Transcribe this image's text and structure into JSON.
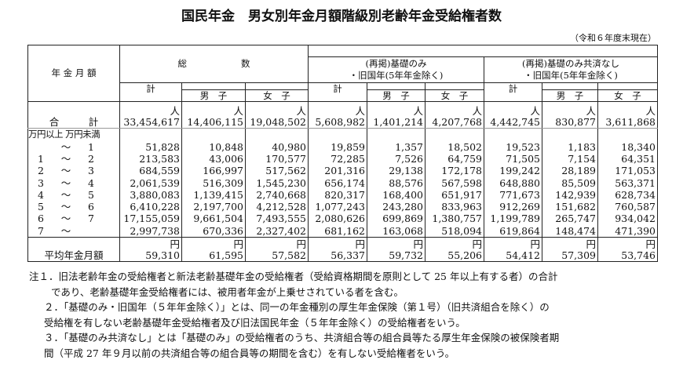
{
  "title": "国民年金　男女別年金月額階級別老齢年金受給権者数",
  "as_of": "（令和６年度末現在）",
  "headers": {
    "row_label": "年 金 月 額",
    "total": "総　　　　　　数",
    "basic": "(再掲)基礎のみ\n・旧国年(5年年金除く)",
    "basic_nokyosai": "(再掲)基礎のみ共済なし\n・旧国年(5年年金除く)",
    "kei": "計",
    "male": "男　子",
    "female": "女　子"
  },
  "unit_people": "人",
  "unit_yen": "円",
  "total_row": {
    "label": "合　　　計",
    "values": [
      "33,454,617",
      "14,406,115",
      "19,048,502",
      "5,608,982",
      "1,401,214",
      "4,207,768",
      "4,442,745",
      "830,877",
      "3,611,868"
    ]
  },
  "range_header": "万円以上 万円未満",
  "rows": [
    {
      "from": "",
      "to": "1",
      "values": [
        "51,828",
        "10,848",
        "40,980",
        "19,859",
        "1,357",
        "18,502",
        "19,523",
        "1,183",
        "18,340"
      ]
    },
    {
      "from": "1",
      "to": "2",
      "values": [
        "213,583",
        "43,006",
        "170,577",
        "72,285",
        "7,526",
        "64,759",
        "71,505",
        "7,154",
        "64,351"
      ]
    },
    {
      "from": "2",
      "to": "3",
      "values": [
        "684,559",
        "166,997",
        "517,562",
        "201,316",
        "29,138",
        "172,178",
        "199,242",
        "28,189",
        "171,053"
      ]
    },
    {
      "from": "3",
      "to": "4",
      "values": [
        "2,061,539",
        "516,309",
        "1,545,230",
        "656,174",
        "88,576",
        "567,598",
        "648,880",
        "85,509",
        "563,371"
      ]
    },
    {
      "from": "4",
      "to": "5",
      "values": [
        "3,880,083",
        "1,139,415",
        "2,740,668",
        "820,317",
        "168,400",
        "651,917",
        "771,673",
        "142,939",
        "628,734"
      ]
    },
    {
      "from": "5",
      "to": "6",
      "values": [
        "6,410,228",
        "2,197,700",
        "4,212,528",
        "1,077,243",
        "243,280",
        "833,963",
        "912,269",
        "151,682",
        "760,587"
      ]
    },
    {
      "from": "6",
      "to": "7",
      "values": [
        "17,155,059",
        "9,661,504",
        "7,493,555",
        "2,080,626",
        "699,869",
        "1,380,757",
        "1,199,789",
        "265,747",
        "934,042"
      ]
    },
    {
      "from": "7",
      "to": "",
      "values": [
        "2,997,738",
        "670,336",
        "2,327,402",
        "681,162",
        "163,068",
        "518,094",
        "619,864",
        "148,474",
        "471,390"
      ]
    }
  ],
  "tilde": "～",
  "average_row": {
    "label": "平均年金月額",
    "values": [
      "59,310",
      "61,595",
      "57,582",
      "56,337",
      "59,732",
      "55,206",
      "54,412",
      "57,309",
      "53,746"
    ]
  },
  "notes": [
    "注１．旧法老齢年金の受給権者と新法老齢基礎年金の受給権者（受給資格期間を原則として 25 年以上有する者）の合計",
    "であり、老齢基礎年金受給権者には、被用者年金が上乗せされている者を含む。",
    "２．「基礎のみ・旧国年（５年年金除く）」とは、同一の年金種別の厚生年金保険（第１号）（旧共済組合を除く）の",
    "受給権を有しない老齢基礎年金受給権者及び旧法国民年金（５年年金除く）の受給権者をいう。",
    "３．「基礎のみ共済なし」とは「基礎のみ」の受給権者のうち、共済組合等の組合員等たる厚生年金保険の被保険者期",
    "間（平成 27 年９月以前の共済組合等の組合員等の期間を含む）を有しない受給権者をいう。"
  ]
}
